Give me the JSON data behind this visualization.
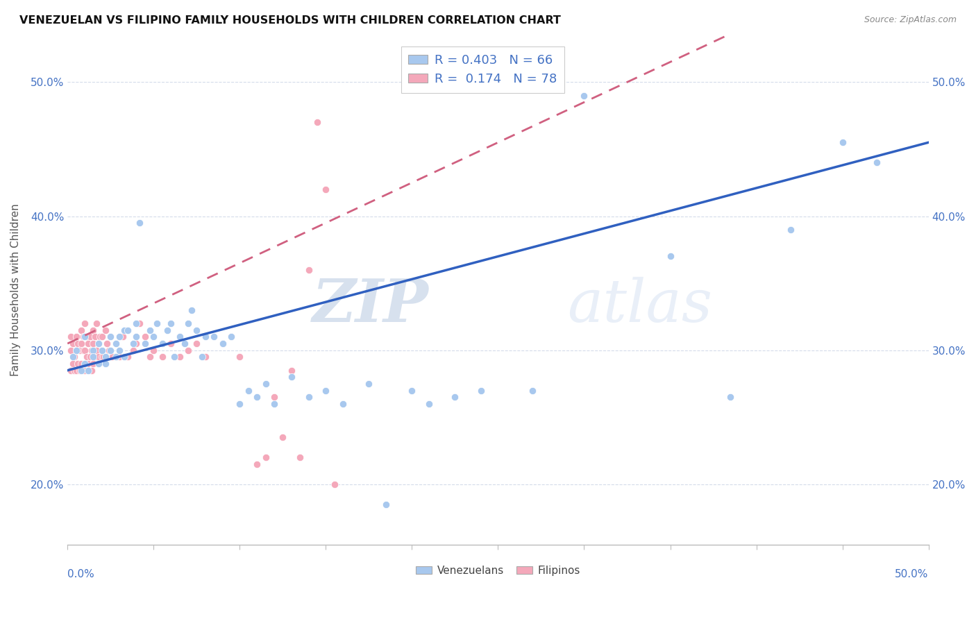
{
  "title": "VENEZUELAN VS FILIPINO FAMILY HOUSEHOLDS WITH CHILDREN CORRELATION CHART",
  "source": "Source: ZipAtlas.com",
  "ylabel": "Family Households with Children",
  "yticks": [
    0.2,
    0.3,
    0.4,
    0.5
  ],
  "ytick_labels": [
    "20.0%",
    "30.0%",
    "40.0%",
    "50.0%"
  ],
  "xlim": [
    0.0,
    0.5
  ],
  "ylim": [
    0.155,
    0.535
  ],
  "blue_color": "#A8C8EE",
  "pink_color": "#F4A8BA",
  "trend_blue": "#3060C0",
  "trend_pink": "#D06080",
  "R_blue": 0.403,
  "N_blue": 66,
  "R_pink": 0.174,
  "N_pink": 78,
  "legend_label_blue": "Venezuelans",
  "legend_label_pink": "Filipinos",
  "watermark_zip": "ZIP",
  "watermark_atlas": "atlas",
  "blue_points_x": [
    0.003,
    0.005,
    0.008,
    0.01,
    0.01,
    0.012,
    0.015,
    0.015,
    0.018,
    0.018,
    0.02,
    0.022,
    0.022,
    0.025,
    0.025,
    0.028,
    0.028,
    0.03,
    0.03,
    0.033,
    0.033,
    0.035,
    0.038,
    0.04,
    0.04,
    0.042,
    0.045,
    0.048,
    0.05,
    0.052,
    0.055,
    0.058,
    0.06,
    0.062,
    0.065,
    0.068,
    0.07,
    0.072,
    0.075,
    0.078,
    0.08,
    0.085,
    0.09,
    0.095,
    0.1,
    0.105,
    0.11,
    0.115,
    0.12,
    0.13,
    0.14,
    0.15,
    0.16,
    0.175,
    0.185,
    0.2,
    0.21,
    0.225,
    0.24,
    0.27,
    0.3,
    0.35,
    0.385,
    0.42,
    0.45,
    0.47
  ],
  "blue_points_y": [
    0.295,
    0.3,
    0.285,
    0.29,
    0.31,
    0.285,
    0.3,
    0.295,
    0.305,
    0.29,
    0.3,
    0.295,
    0.29,
    0.31,
    0.3,
    0.305,
    0.295,
    0.31,
    0.3,
    0.315,
    0.295,
    0.315,
    0.305,
    0.31,
    0.32,
    0.395,
    0.305,
    0.315,
    0.31,
    0.32,
    0.305,
    0.315,
    0.32,
    0.295,
    0.31,
    0.305,
    0.32,
    0.33,
    0.315,
    0.295,
    0.31,
    0.31,
    0.305,
    0.31,
    0.26,
    0.27,
    0.265,
    0.275,
    0.26,
    0.28,
    0.265,
    0.27,
    0.26,
    0.275,
    0.185,
    0.27,
    0.26,
    0.265,
    0.27,
    0.27,
    0.49,
    0.37,
    0.265,
    0.39,
    0.455,
    0.44
  ],
  "pink_points_x": [
    0.002,
    0.002,
    0.002,
    0.003,
    0.003,
    0.004,
    0.004,
    0.005,
    0.005,
    0.005,
    0.006,
    0.006,
    0.007,
    0.007,
    0.008,
    0.008,
    0.008,
    0.009,
    0.009,
    0.01,
    0.01,
    0.01,
    0.01,
    0.011,
    0.011,
    0.012,
    0.012,
    0.013,
    0.013,
    0.014,
    0.014,
    0.015,
    0.015,
    0.015,
    0.016,
    0.016,
    0.017,
    0.017,
    0.018,
    0.018,
    0.019,
    0.02,
    0.02,
    0.021,
    0.022,
    0.023,
    0.024,
    0.025,
    0.026,
    0.028,
    0.03,
    0.032,
    0.035,
    0.038,
    0.04,
    0.042,
    0.045,
    0.048,
    0.05,
    0.055,
    0.06,
    0.065,
    0.07,
    0.075,
    0.08,
    0.09,
    0.095,
    0.1,
    0.11,
    0.115,
    0.12,
    0.125,
    0.13,
    0.135,
    0.14,
    0.145,
    0.15,
    0.155
  ],
  "pink_points_y": [
    0.285,
    0.3,
    0.31,
    0.29,
    0.305,
    0.285,
    0.295,
    0.285,
    0.3,
    0.31,
    0.29,
    0.305,
    0.285,
    0.3,
    0.29,
    0.305,
    0.315,
    0.3,
    0.31,
    0.285,
    0.3,
    0.31,
    0.32,
    0.295,
    0.31,
    0.29,
    0.305,
    0.295,
    0.31,
    0.285,
    0.3,
    0.29,
    0.305,
    0.315,
    0.295,
    0.31,
    0.32,
    0.3,
    0.295,
    0.305,
    0.31,
    0.295,
    0.31,
    0.295,
    0.315,
    0.305,
    0.3,
    0.31,
    0.295,
    0.305,
    0.295,
    0.31,
    0.295,
    0.3,
    0.305,
    0.32,
    0.31,
    0.295,
    0.3,
    0.295,
    0.305,
    0.295,
    0.3,
    0.305,
    0.295,
    0.305,
    0.31,
    0.295,
    0.215,
    0.22,
    0.265,
    0.235,
    0.285,
    0.22,
    0.36,
    0.47,
    0.42,
    0.2
  ]
}
